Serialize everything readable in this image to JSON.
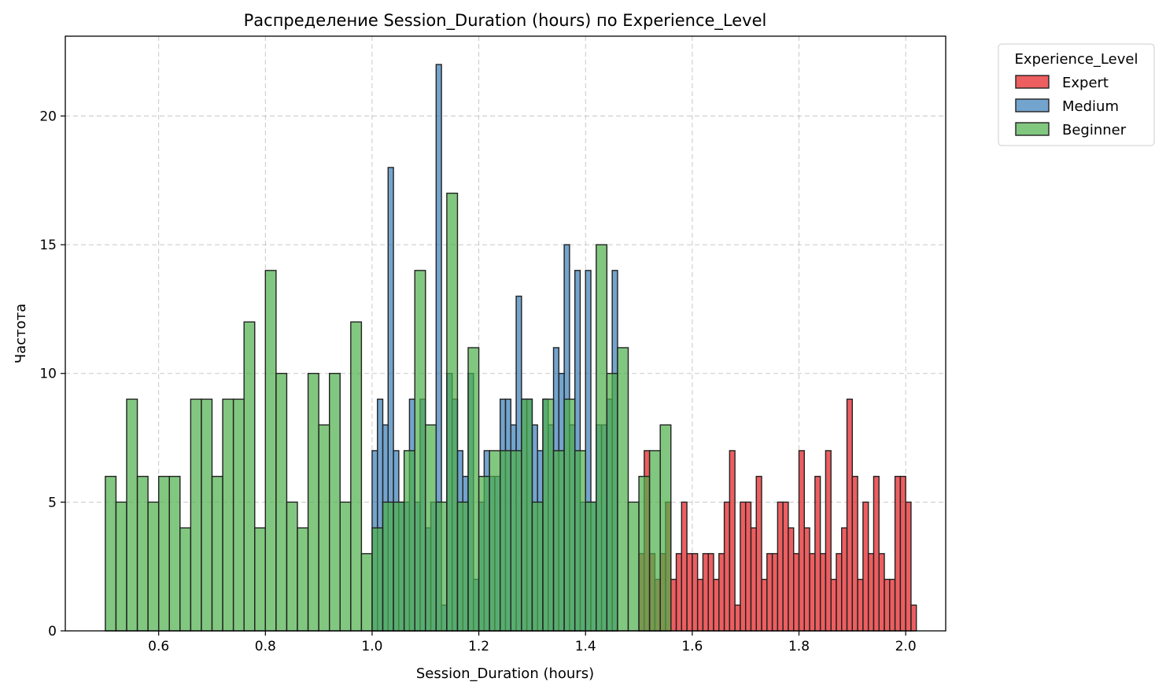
{
  "chart_data": {
    "type": "histogram",
    "title": "Распределение Session_Duration (hours) по Experience_Level",
    "xlabel": "Session_Duration (hours)",
    "ylabel": "Частота",
    "xlim": [
      0.425,
      2.075
    ],
    "ylim": [
      0,
      23.1
    ],
    "x_ticks": [
      "0.6",
      "0.8",
      "1.0",
      "1.2",
      "1.4",
      "1.6",
      "1.8",
      "2.0"
    ],
    "x_tick_values": [
      0.6,
      0.8,
      1.0,
      1.2,
      1.4,
      1.6,
      1.8,
      2.0
    ],
    "y_ticks": [
      "0",
      "5",
      "10",
      "15",
      "20"
    ],
    "y_tick_values": [
      0,
      5,
      10,
      15,
      20
    ],
    "grid": true,
    "legend": {
      "title": "Experience_Level",
      "placement": "outside-top-right"
    },
    "series": [
      {
        "name": "Expert",
        "color": "#e41a1c",
        "x_start": 1.5,
        "bin_width": 0.01,
        "values": [
          3,
          7,
          3,
          2,
          3,
          5,
          2,
          3,
          5,
          3,
          3,
          2,
          3,
          3,
          2,
          3,
          5,
          7,
          1,
          5,
          5,
          4,
          6,
          2,
          3,
          3,
          5,
          5,
          4,
          3,
          7,
          4,
          3,
          6,
          3,
          7,
          2,
          3,
          4,
          9,
          6,
          2,
          5,
          3,
          6,
          3,
          2,
          2,
          6,
          6,
          5,
          1
        ]
      },
      {
        "name": "Medium",
        "color": "#377eb8",
        "x_start": 1.0,
        "bin_width": 0.01,
        "values": [
          7,
          9,
          8,
          18,
          7,
          5,
          5,
          9,
          5,
          9,
          4,
          5,
          22,
          1,
          10,
          9,
          7,
          6,
          10,
          2,
          5,
          7,
          6,
          6,
          9,
          9,
          8,
          13,
          9,
          9,
          8,
          7,
          9,
          8,
          11,
          10,
          15,
          8,
          14,
          5,
          14,
          5,
          8,
          8,
          9,
          14
        ]
      },
      {
        "name": "Beginner",
        "color": "#4daf4a",
        "x_start": 0.5,
        "bin_width": 0.02,
        "values": [
          6,
          5,
          9,
          6,
          5,
          6,
          6,
          4,
          9,
          9,
          6,
          9,
          9,
          12,
          4,
          14,
          10,
          5,
          4,
          10,
          8,
          10,
          5,
          12,
          3,
          4,
          5,
          5,
          7,
          14,
          8,
          5,
          17,
          5,
          11,
          6,
          7,
          7,
          7,
          9,
          5,
          9,
          7,
          9,
          7,
          5,
          15,
          10,
          11,
          5,
          6,
          7,
          8
        ]
      }
    ]
  }
}
